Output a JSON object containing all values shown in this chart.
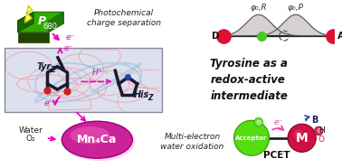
{
  "bg_color": "#ffffff",
  "p680_color": "#33aa00",
  "p680_dark": "#1a6600",
  "p680_shadow": "#224400",
  "p680_label": "P",
  "p680_sub": "680",
  "mn4ca_color_inner": "#ee60bb",
  "mn4ca_color_outer": "#cc2299",
  "mn4ca_label": "Mn₄Ca",
  "tyrosine_text": "Tyrosine as a\nredox-active\nintermediate",
  "photochem_text": "Photochemical\ncharge separation",
  "water_text": "Water\nO₂",
  "multi_text": "Multi-electron\nwater oxidation",
  "pcet_label": "PCET",
  "tyr_label": "Tyr",
  "tyr_sub": "Z",
  "his_label": "His",
  "his_sub": "Z",
  "acceptor_color": "#55dd11",
  "acceptor_dark": "#339900",
  "metal_color": "#cc1144",
  "metal_dark": "#880022",
  "donor_color": "#dd1133",
  "green_dot": "#44cc22",
  "arrow_magenta": "#ee00bb",
  "arrow_pink": "#ee44aa",
  "phi_r_label": "φ₀,R",
  "phi_p_label": "φ₀,P",
  "box_bg": "#dde0ee",
  "box_edge": "#888899",
  "lightning_color": "#ffff44",
  "lightning_edge": "#aaaa00",
  "blue_arrow": "#2244bb",
  "minus_color": "#44bb44",
  "minus_red": "#cc1144"
}
